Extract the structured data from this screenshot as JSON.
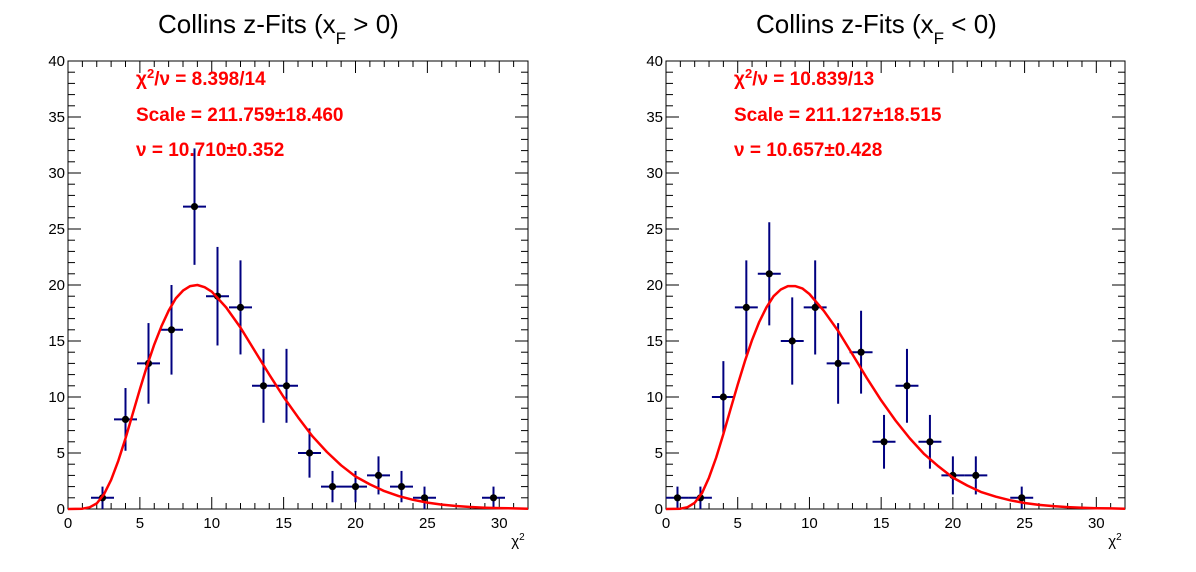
{
  "chart_data": [
    {
      "type": "scatter",
      "title": {
        "main": "Collins z-Fits (x",
        "sub": "F",
        "rel": " > 0)"
      },
      "xlabel": {
        "base": "χ",
        "sup": "2"
      },
      "ylabel": "",
      "xlim": [
        0,
        32
      ],
      "ylim": [
        0,
        40
      ],
      "xticks": [
        0,
        5,
        10,
        15,
        20,
        25,
        30
      ],
      "yticks": [
        0,
        5,
        10,
        15,
        20,
        25,
        30,
        35,
        40
      ],
      "grid": false,
      "stats": [
        {
          "pre": "χ",
          "sup": "2",
          "post": "/ν = 8.398/14"
        },
        {
          "pre": "Scale = 211.759±18.460",
          "sup": "",
          "post": ""
        },
        {
          "pre": "ν = 10.710±0.352",
          "sup": "",
          "post": ""
        }
      ],
      "bin_half_width": 0.8,
      "series": [
        {
          "kind": "data",
          "color": "#000080",
          "points": [
            {
              "x": 2.4,
              "y": 1,
              "err": 1.0
            },
            {
              "x": 4.0,
              "y": 8,
              "err": 2.8
            },
            {
              "x": 5.6,
              "y": 13,
              "err": 3.6
            },
            {
              "x": 7.2,
              "y": 16,
              "err": 4.0
            },
            {
              "x": 8.8,
              "y": 27,
              "err": 5.2
            },
            {
              "x": 10.4,
              "y": 19,
              "err": 4.4
            },
            {
              "x": 12.0,
              "y": 18,
              "err": 4.2
            },
            {
              "x": 13.6,
              "y": 11,
              "err": 3.3
            },
            {
              "x": 15.2,
              "y": 11,
              "err": 3.3
            },
            {
              "x": 16.8,
              "y": 5,
              "err": 2.2
            },
            {
              "x": 18.4,
              "y": 2,
              "err": 1.4
            },
            {
              "x": 20.0,
              "y": 2,
              "err": 1.4
            },
            {
              "x": 21.6,
              "y": 3,
              "err": 1.7
            },
            {
              "x": 23.2,
              "y": 2,
              "err": 1.4
            },
            {
              "x": 24.8,
              "y": 1,
              "err": 1.0
            },
            {
              "x": 29.6,
              "y": 1,
              "err": 1.0
            }
          ]
        },
        {
          "kind": "fit",
          "color": "#ff0000",
          "x": [
            0,
            1,
            1.5,
            2,
            2.5,
            3,
            3.5,
            4,
            4.5,
            5,
            5.5,
            6,
            6.5,
            7,
            7.5,
            8,
            8.5,
            9,
            9.5,
            10,
            11,
            12,
            13,
            14,
            15,
            16,
            17,
            18,
            19,
            20,
            21,
            22,
            23,
            24,
            25,
            26,
            27,
            28,
            29,
            30,
            31,
            32
          ],
          "y": [
            0,
            0.03,
            0.15,
            0.5,
            1.3,
            2.6,
            4.3,
            6.3,
            8.5,
            10.7,
            12.8,
            14.7,
            16.3,
            17.7,
            18.8,
            19.5,
            19.9,
            20.0,
            19.8,
            19.4,
            18.0,
            16.2,
            14.1,
            12.0,
            10.0,
            8.2,
            6.5,
            5.1,
            3.9,
            2.9,
            2.2,
            1.6,
            1.15,
            0.82,
            0.57,
            0.39,
            0.27,
            0.18,
            0.12,
            0.08,
            0.05,
            0.03
          ]
        }
      ]
    },
    {
      "type": "scatter",
      "title": {
        "main": "Collins z-Fits (x",
        "sub": "F",
        "rel": " < 0)"
      },
      "xlabel": {
        "base": "χ",
        "sup": "2"
      },
      "ylabel": "",
      "xlim": [
        0,
        32
      ],
      "ylim": [
        0,
        40
      ],
      "xticks": [
        0,
        5,
        10,
        15,
        20,
        25,
        30
      ],
      "yticks": [
        0,
        5,
        10,
        15,
        20,
        25,
        30,
        35,
        40
      ],
      "grid": false,
      "stats": [
        {
          "pre": "χ",
          "sup": "2",
          "post": "/ν = 10.839/13"
        },
        {
          "pre": "Scale = 211.127±18.515",
          "sup": "",
          "post": ""
        },
        {
          "pre": "ν = 10.657±0.428",
          "sup": "",
          "post": ""
        }
      ],
      "bin_half_width": 0.8,
      "series": [
        {
          "kind": "data",
          "color": "#000080",
          "points": [
            {
              "x": 0.8,
              "y": 1,
              "err": 1.0
            },
            {
              "x": 2.4,
              "y": 1,
              "err": 1.0
            },
            {
              "x": 4.0,
              "y": 10,
              "err": 3.2
            },
            {
              "x": 5.6,
              "y": 18,
              "err": 4.2
            },
            {
              "x": 7.2,
              "y": 21,
              "err": 4.6
            },
            {
              "x": 8.8,
              "y": 15,
              "err": 3.9
            },
            {
              "x": 10.4,
              "y": 18,
              "err": 4.2
            },
            {
              "x": 12.0,
              "y": 13,
              "err": 3.6
            },
            {
              "x": 13.6,
              "y": 14,
              "err": 3.7
            },
            {
              "x": 15.2,
              "y": 6,
              "err": 2.4
            },
            {
              "x": 16.8,
              "y": 11,
              "err": 3.3
            },
            {
              "x": 18.4,
              "y": 6,
              "err": 2.4
            },
            {
              "x": 20.0,
              "y": 3,
              "err": 1.7
            },
            {
              "x": 21.6,
              "y": 3,
              "err": 1.7
            },
            {
              "x": 24.8,
              "y": 1,
              "err": 1.0
            }
          ]
        },
        {
          "kind": "fit",
          "color": "#ff0000",
          "x": [
            0,
            1,
            1.5,
            2,
            2.5,
            3,
            3.5,
            4,
            4.5,
            5,
            5.5,
            6,
            6.5,
            7,
            7.5,
            8,
            8.5,
            9,
            9.5,
            10,
            11,
            12,
            13,
            14,
            15,
            16,
            17,
            18,
            19,
            20,
            21,
            22,
            23,
            24,
            25,
            26,
            27,
            28,
            29,
            30,
            31,
            32
          ],
          "y": [
            0,
            0.03,
            0.16,
            0.55,
            1.4,
            2.8,
            4.6,
            6.7,
            8.9,
            11.1,
            13.2,
            15.1,
            16.7,
            18.0,
            19.0,
            19.6,
            19.9,
            19.9,
            19.7,
            19.2,
            17.7,
            15.9,
            13.8,
            11.7,
            9.7,
            7.9,
            6.3,
            4.9,
            3.8,
            2.8,
            2.1,
            1.5,
            1.1,
            0.78,
            0.54,
            0.37,
            0.26,
            0.17,
            0.11,
            0.07,
            0.05,
            0.03
          ]
        }
      ]
    }
  ]
}
